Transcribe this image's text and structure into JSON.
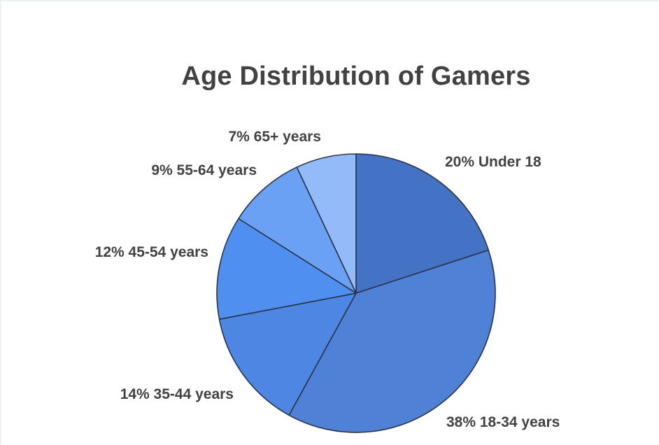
{
  "chart_data": {
    "type": "pie",
    "title": "Age Distribution of Gamers",
    "start_angle_deg": 0,
    "direction": "clockwise",
    "slices": [
      {
        "label": "Under 18",
        "value": 20,
        "display": "20% Under 18",
        "color": "#4472c4"
      },
      {
        "label": "18-34 years",
        "value": 38,
        "display": "38% 18-34 years",
        "color": "#4f81d7"
      },
      {
        "label": "35-44 years",
        "value": 14,
        "display": "14% 35-44 years",
        "color": "#4d86e3"
      },
      {
        "label": "45-54 years",
        "value": 12,
        "display": "12% 45-54 years",
        "color": "#4e8ff0"
      },
      {
        "label": "55-64 years",
        "value": 9,
        "display": "9% 55-64 years",
        "color": "#6aa1f5"
      },
      {
        "label": "65+ years",
        "value": 7,
        "display": "7% 65+ years",
        "color": "#93bbfa"
      }
    ],
    "legend": "none"
  },
  "colors": {
    "title": "#424242",
    "labels": "#424242",
    "slice_border": "#2b3445",
    "background": "#ffffff"
  }
}
